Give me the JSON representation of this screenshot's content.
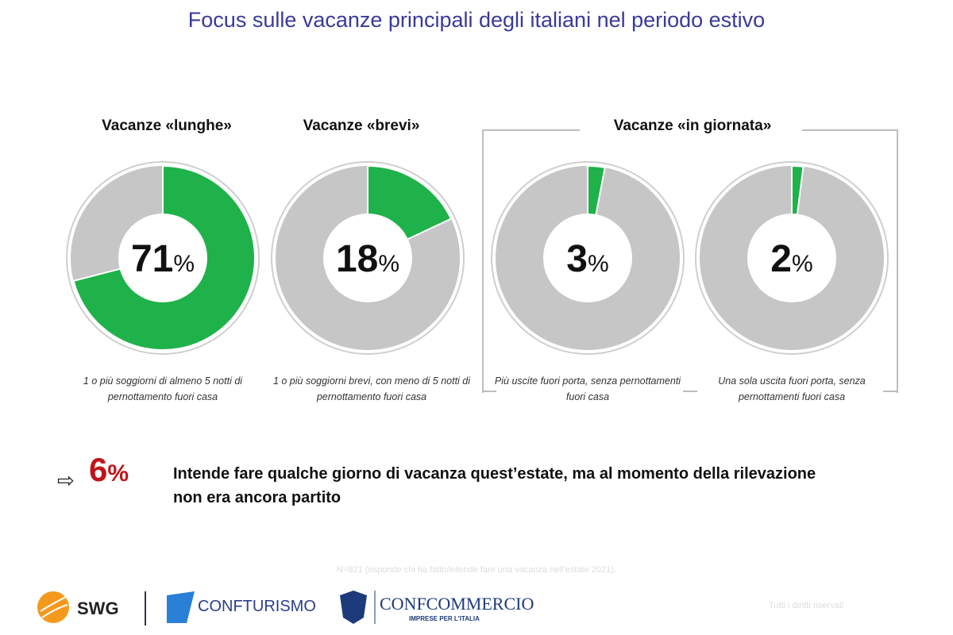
{
  "title": "Focus sulle vacanze principali degli italiani nel periodo estivo",
  "colors": {
    "green": "#1fb24a",
    "gray": "#c6c6c6",
    "red": "#c0141a",
    "title": "#3a3a9a"
  },
  "chart_data": {
    "type": "pie",
    "title": "Focus sulle vacanze principali degli italiani nel periodo estivo",
    "groups": [
      "Vacanze «lunghe»",
      "Vacanze «brevi»",
      "Vacanze «in giornata»"
    ],
    "series": [
      {
        "name": "Vacanze «lunghe»",
        "value": 71,
        "label": "71",
        "caption": "1 o più soggiorni di almeno 5 notti di pernottamento fuori casa"
      },
      {
        "name": "Vacanze «brevi»",
        "value": 18,
        "label": "18",
        "caption": "1 o più soggiorni brevi, con meno di 5 notti di pernottamento fuori casa"
      },
      {
        "name": "Vacanze «in giornata» (più uscite)",
        "value": 3,
        "label": "3",
        "caption": "Più uscite fuori porta, senza pernottamenti fuori casa"
      },
      {
        "name": "Vacanze «in giornata» (una uscita)",
        "value": 2,
        "label": "2",
        "caption": "Una sola uscita fuori porta, senza pernottamenti fuori casa"
      }
    ],
    "unit": "%"
  },
  "headers": {
    "lunghe": "Vacanze «lunghe»",
    "brevi": "Vacanze «brevi»",
    "giornata": "Vacanze «in giornata»"
  },
  "captions": [
    "1 o più soggiorni di almeno 5 notti di pernottamento fuori casa",
    "1 o più soggiorni brevi, con meno di 5 notti di pernottamento fuori casa",
    "Più uscite fuori porta, senza pernottamenti fuori casa",
    "Una sola uscita fuori porta, senza pernottamenti fuori casa"
  ],
  "callout": {
    "value": "6",
    "unit": "%",
    "text": "Intende fare qualche giorno di vacanza quest’estate, ma al momento della rilevazione non era ancora partito"
  },
  "footnote": "N=821 (risponde chi ha fatto/intende fare una vacanza nell’estate 2021).",
  "rights": "Tutti i diritti riservati",
  "logos": {
    "swg": "SWG",
    "confturismo": "CONFTURISMO",
    "confcommercio": "CONFCOMMERCIO",
    "confcommercio_sub": "IMPRESE PER L'ITALIA"
  }
}
